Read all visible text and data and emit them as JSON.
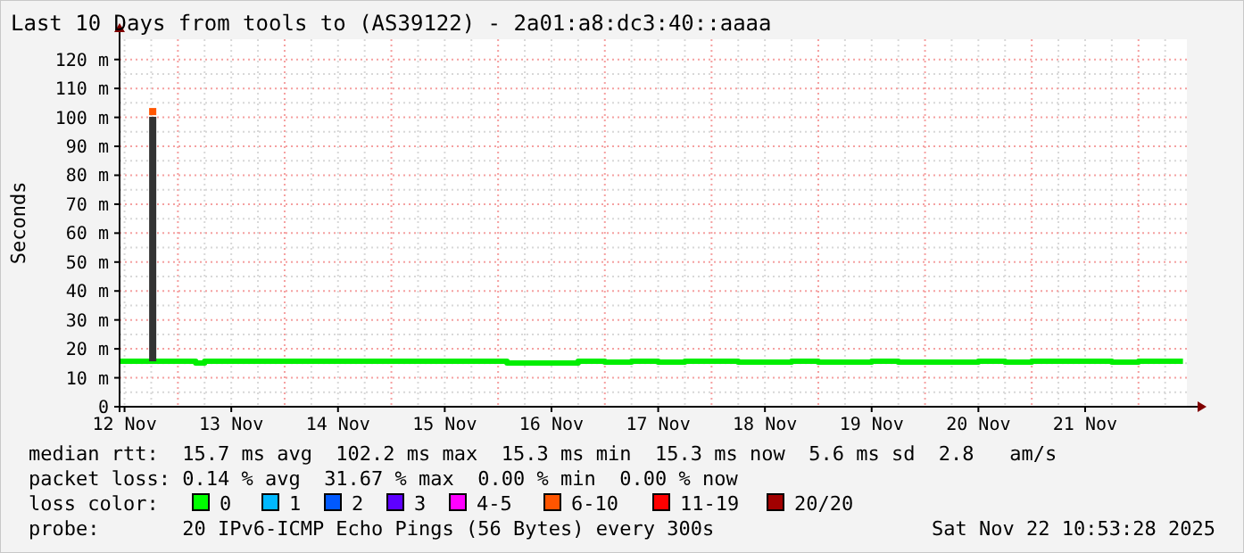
{
  "chart_data": {
    "type": "line",
    "title": "Last 10 Days from tools to (AS39122) - 2a01:a8:dc3:40::aaaa",
    "ylabel": "Seconds",
    "xlim": [
      "2025-11-12T10:53",
      "2025-11-22T10:53"
    ],
    "xticks": [
      {
        "value": "2025-11-12T12:00",
        "label": "12 Nov"
      },
      {
        "value": "2025-11-13T12:00",
        "label": "13 Nov"
      },
      {
        "value": "2025-11-14T12:00",
        "label": "14 Nov"
      },
      {
        "value": "2025-11-15T12:00",
        "label": "15 Nov"
      },
      {
        "value": "2025-11-16T12:00",
        "label": "16 Nov"
      },
      {
        "value": "2025-11-17T12:00",
        "label": "17 Nov"
      },
      {
        "value": "2025-11-18T12:00",
        "label": "18 Nov"
      },
      {
        "value": "2025-11-19T12:00",
        "label": "19 Nov"
      },
      {
        "value": "2025-11-20T12:00",
        "label": "20 Nov"
      },
      {
        "value": "2025-11-21T12:00",
        "label": "21 Nov"
      }
    ],
    "ylim": [
      0,
      127
    ],
    "yticks": [
      {
        "value": 0,
        "label": "0"
      },
      {
        "value": 10,
        "label": "10 m"
      },
      {
        "value": 20,
        "label": "20 m"
      },
      {
        "value": 30,
        "label": "30 m"
      },
      {
        "value": 40,
        "label": "40 m"
      },
      {
        "value": 50,
        "label": "50 m"
      },
      {
        "value": 60,
        "label": "60 m"
      },
      {
        "value": 70,
        "label": "70 m"
      },
      {
        "value": 80,
        "label": "80 m"
      },
      {
        "value": 90,
        "label": "90 m"
      },
      {
        "value": 100,
        "label": "100 m"
      },
      {
        "value": 110,
        "label": "110 m"
      },
      {
        "value": 120,
        "label": "120 m"
      }
    ],
    "grid": true,
    "series": [
      {
        "type": "bar",
        "color": "#333333",
        "x": [
          "2025-11-12T18:20"
        ],
        "base": [
          15.7
        ],
        "values": [
          84.5
        ]
      },
      {
        "type": "scatter",
        "color": "#ff5500",
        "marker": "square",
        "x": [
          "2025-11-12T18:20"
        ],
        "values": [
          102
        ]
      },
      {
        "color": "#00ee00",
        "x": [
          "2025-11-12T11:00",
          "2025-11-12T18:00",
          "2025-11-13T00:00",
          "2025-11-13T04:00",
          "2025-11-13T06:00",
          "2025-11-13T12:00",
          "2025-11-14T00:00",
          "2025-11-14T12:00",
          "2025-11-15T00:00",
          "2025-11-15T12:00",
          "2025-11-16T00:00",
          "2025-11-16T02:00",
          "2025-11-16T06:00",
          "2025-11-16T10:00",
          "2025-11-16T18:00",
          "2025-11-17T00:00",
          "2025-11-17T06:00",
          "2025-11-17T12:00",
          "2025-11-17T18:00",
          "2025-11-18T00:00",
          "2025-11-18T06:00",
          "2025-11-18T12:00",
          "2025-11-18T18:00",
          "2025-11-19T00:00",
          "2025-11-19T06:00",
          "2025-11-19T12:00",
          "2025-11-19T18:00",
          "2025-11-20T00:00",
          "2025-11-20T06:00",
          "2025-11-20T12:00",
          "2025-11-20T18:00",
          "2025-11-21T00:00",
          "2025-11-21T06:00",
          "2025-11-21T12:00",
          "2025-11-21T18:00",
          "2025-11-22T00:00",
          "2025-11-22T06:00",
          "2025-11-22T10:00"
        ],
        "values": [
          15.7,
          15.7,
          15.7,
          15.1,
          15.7,
          15.7,
          15.7,
          15.7,
          15.7,
          15.7,
          15.7,
          15.1,
          15.1,
          15.1,
          15.7,
          15.4,
          15.7,
          15.4,
          15.7,
          15.7,
          15.4,
          15.4,
          15.7,
          15.4,
          15.4,
          15.7,
          15.4,
          15.4,
          15.4,
          15.7,
          15.4,
          15.7,
          15.7,
          15.7,
          15.4,
          15.7,
          15.7,
          15.7
        ]
      }
    ],
    "annotations": [
      "median rtt:  15.7 ms avg  102.2 ms max  15.3 ms min  15.3 ms now  5.6 ms sd  2.8   am/s",
      "packet loss: 0.14 % avg  31.67 % max  0.00 % min  0.00 % now",
      "loss color:",
      "0",
      "1",
      "2",
      "3",
      "4-5",
      "6-10",
      "11-19",
      "20/20",
      "probe:       20 IPv6-ICMP Echo Pings (56 Bytes) every 300s",
      "Sat Nov 22 10:53:28 2025"
    ]
  }
}
